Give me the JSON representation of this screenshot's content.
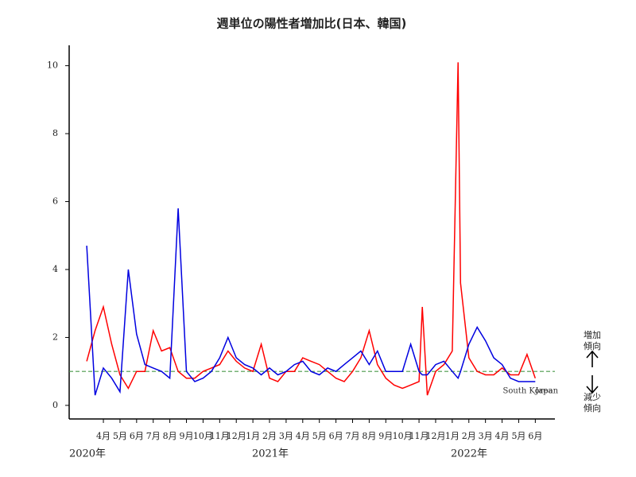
{
  "chart_data": {
    "type": "line",
    "title": "週単位の陽性者増加比(日本、韓国)",
    "x": [
      -1,
      -0.5,
      0,
      0.5,
      1,
      1.5,
      2,
      2.5,
      3,
      3.5,
      4,
      4.5,
      5,
      5.5,
      6,
      6.5,
      7,
      7.5,
      8,
      8.5,
      9,
      9.5,
      10,
      10.5,
      11,
      11.5,
      12,
      12.5,
      13,
      13.5,
      14,
      14.5,
      15,
      15.5,
      16,
      16.5,
      17,
      17.5,
      18,
      18.5,
      19,
      19.2,
      19.5,
      20,
      20.5,
      21,
      21.35,
      21.5,
      22,
      22.5,
      23,
      23.5,
      24,
      24.5,
      25,
      25.5,
      26
    ],
    "series": [
      {
        "name": "Japan",
        "color": "#ff0000",
        "values": [
          1.3,
          2.2,
          2.9,
          1.8,
          0.9,
          0.5,
          1.0,
          1.0,
          2.2,
          1.6,
          1.7,
          1.0,
          0.8,
          0.8,
          1.0,
          1.1,
          1.2,
          1.6,
          1.3,
          1.1,
          1.0,
          1.8,
          0.8,
          0.7,
          1.0,
          1.0,
          1.4,
          1.3,
          1.2,
          1.0,
          0.8,
          0.7,
          1.0,
          1.4,
          2.2,
          1.2,
          0.8,
          0.6,
          0.5,
          0.6,
          0.7,
          2.9,
          0.3,
          1.0,
          1.2,
          1.6,
          10.1,
          3.6,
          1.4,
          1.0,
          0.9,
          0.9,
          1.1,
          0.9,
          0.9,
          1.5,
          0.8
        ]
      },
      {
        "name": "South Korea",
        "color": "#0000e0",
        "values": [
          4.7,
          0.3,
          1.1,
          0.8,
          0.4,
          4.0,
          2.1,
          1.2,
          1.1,
          1.0,
          0.8,
          5.8,
          1.0,
          0.7,
          0.8,
          1.0,
          1.4,
          2.0,
          1.4,
          1.2,
          1.1,
          0.9,
          1.1,
          0.9,
          1.0,
          1.2,
          1.3,
          1.0,
          0.9,
          1.1,
          1.0,
          1.2,
          1.4,
          1.6,
          1.2,
          1.6,
          1.0,
          1.0,
          1.0,
          1.8,
          1.0,
          0.9,
          0.9,
          1.2,
          1.3,
          1.0,
          0.8,
          1.0,
          1.8,
          2.3,
          1.9,
          1.4,
          1.2,
          0.8,
          0.7,
          0.7,
          0.7
        ]
      }
    ],
    "xlim": [
      -2.06,
      27.18
    ],
    "xticks": [
      {
        "value": 0,
        "label": "4月"
      },
      {
        "value": 1,
        "label": "5月"
      },
      {
        "value": 2,
        "label": "6月"
      },
      {
        "value": 3,
        "label": "7月"
      },
      {
        "value": 4,
        "label": "8月"
      },
      {
        "value": 5,
        "label": "9月"
      },
      {
        "value": 6,
        "label": "10月"
      },
      {
        "value": 7,
        "label": "11月"
      },
      {
        "value": 8,
        "label": "12月"
      },
      {
        "value": 9,
        "label": "1月"
      },
      {
        "value": 10,
        "label": "2月"
      },
      {
        "value": 11,
        "label": "3月"
      },
      {
        "value": 12,
        "label": "4月"
      },
      {
        "value": 13,
        "label": "5月"
      },
      {
        "value": 14,
        "label": "6月"
      },
      {
        "value": 15,
        "label": "7月"
      },
      {
        "value": 16,
        "label": "8月"
      },
      {
        "value": 17,
        "label": "9月"
      },
      {
        "value": 18,
        "label": "10月"
      },
      {
        "value": 19,
        "label": "11月"
      },
      {
        "value": 20,
        "label": "12月"
      },
      {
        "value": 21,
        "label": "1月"
      },
      {
        "value": 22,
        "label": "2月"
      },
      {
        "value": 23,
        "label": "3月"
      },
      {
        "value": 24,
        "label": "4月"
      },
      {
        "value": 25,
        "label": "5月"
      },
      {
        "value": 26,
        "label": "6月"
      }
    ],
    "year_labels": [
      "2020年",
      "2021年",
      "2022年"
    ],
    "ylim": [
      -0.4,
      10.6
    ],
    "yticks": [
      0,
      2,
      4,
      6,
      8,
      10
    ],
    "reference_line": {
      "value": 1,
      "color": "#4a9a4a"
    },
    "annotations": {
      "up": [
        "増加",
        "傾向"
      ],
      "down": [
        "減少",
        "傾向"
      ]
    }
  }
}
